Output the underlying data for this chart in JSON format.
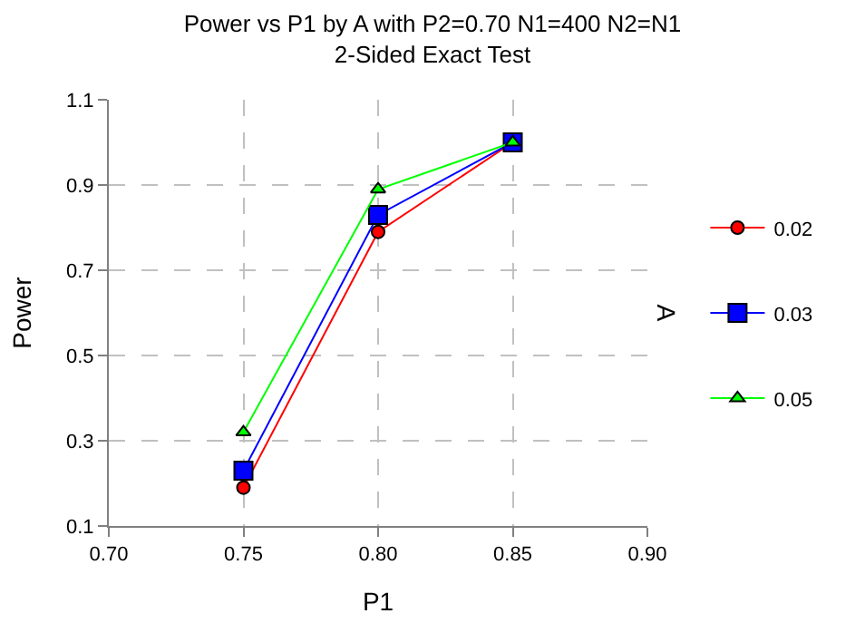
{
  "chart_data": {
    "type": "line",
    "title": "Power vs P1 by A with P2=0.70 N1=400 N2=N1",
    "subtitle": "2-Sided Exact Test",
    "xlabel": "P1",
    "ylabel": "Power",
    "legend_title": "A",
    "x": [
      0.75,
      0.8,
      0.85
    ],
    "series": [
      {
        "name": "0.02",
        "color": "#ff0000",
        "marker": "circle",
        "values": [
          0.19,
          0.79,
          1.0
        ]
      },
      {
        "name": "0.03",
        "color": "#0000ff",
        "marker": "square",
        "values": [
          0.23,
          0.83,
          1.0
        ]
      },
      {
        "name": "0.05",
        "color": "#00ff00",
        "marker": "triangle",
        "values": [
          0.32,
          0.89,
          1.0
        ]
      }
    ],
    "xlim": [
      0.7,
      0.9
    ],
    "xticks": [
      {
        "value": 0.7,
        "label": "0.70"
      },
      {
        "value": 0.75,
        "label": "0.75"
      },
      {
        "value": 0.8,
        "label": "0.80"
      },
      {
        "value": 0.85,
        "label": "0.85"
      },
      {
        "value": 0.9,
        "label": "0.90"
      }
    ],
    "ylim": [
      0.1,
      1.1
    ],
    "yticks": [
      0.1,
      0.3,
      0.5,
      0.7,
      0.9,
      1.1
    ],
    "grid": true,
    "legend": "right",
    "line_style": "solid"
  }
}
